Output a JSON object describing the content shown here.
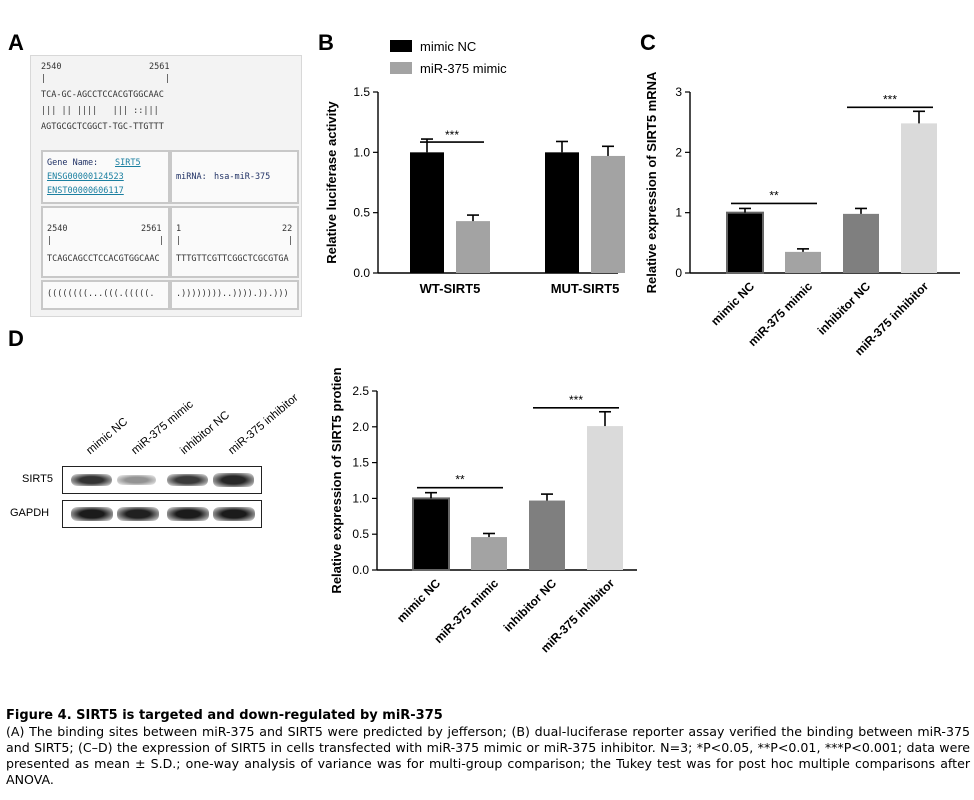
{
  "panel_labels": {
    "a": "A",
    "b": "B",
    "c": "C",
    "d": "D"
  },
  "panelA": {
    "pos1_start": "2540",
    "pos1_end": "2561",
    "seq1": "TCA-GC-AGCCTCCACGTGGCAAC",
    "match1": "||| || ||||   ||| ::|||",
    "seq2": "AGTGCGCTCGGCT-TGC-TTGTTT",
    "gene_name_label": "Gene Name:",
    "gene_name": "SIRT5",
    "ensg": "ENSG00000124523",
    "enst": "ENST00000606117",
    "mirna_label": "miRNA:",
    "mirna": "hsa-miR-375",
    "pos2_start": "2540",
    "pos2_end": "2561",
    "pos3_start": "1",
    "pos3_end": "22",
    "bar": "|",
    "seq3": "TCAGCAGCCTCCACGTGGCAAC",
    "seq4": "TTTGTTCGTTCGGCTCGCGTGA",
    "struct1": "((((((((...(((.(((((.",
    "struct2": ".))))))))..)))).)).)))"
  },
  "chart_data": [
    {
      "id": "B",
      "type": "bar",
      "categories": [
        "WT-SIRT5",
        "MUT-SIRT5"
      ],
      "series": [
        {
          "name": "mimic NC",
          "color": "#000000",
          "values": [
            1.0,
            1.0
          ],
          "errors": [
            0.11,
            0.09
          ]
        },
        {
          "name": "miR-375 mimic",
          "color": "#a3a3a3",
          "values": [
            0.43,
            0.97
          ],
          "errors": [
            0.05,
            0.08
          ]
        }
      ],
      "ylabel": "Relative luciferase activity",
      "ylim": [
        0,
        1.5
      ],
      "yticks": [
        "0.0",
        "0.5",
        "1.0",
        "1.5"
      ],
      "significance": [
        {
          "label": "***",
          "category": "WT-SIRT5"
        }
      ]
    },
    {
      "id": "C",
      "type": "bar",
      "categories": [
        "mimic NC",
        "miR-375 mimic",
        "inhibitor NC",
        "miR-375 inhibitor"
      ],
      "values": [
        1.0,
        0.35,
        0.98,
        2.48
      ],
      "errors": [
        0.07,
        0.05,
        0.09,
        0.2
      ],
      "colors": [
        "#000000",
        "#a3a3a3",
        "#7f7f7f",
        "#dadada"
      ],
      "ylabel": "Relative expression of SIRT5 mRNA",
      "ylim": [
        0,
        3
      ],
      "yticks": [
        "0",
        "1",
        "2",
        "3"
      ],
      "significance": [
        {
          "label": "**",
          "between": [
            0,
            1
          ]
        },
        {
          "label": "***",
          "between": [
            2,
            3
          ]
        }
      ]
    },
    {
      "id": "D",
      "type": "bar",
      "categories": [
        "mimic NC",
        "miR-375 mimic",
        "inhibitor NC",
        "miR-375 inhibitor"
      ],
      "values": [
        1.0,
        0.46,
        0.97,
        2.01
      ],
      "errors": [
        0.08,
        0.05,
        0.09,
        0.2
      ],
      "colors": [
        "#000000",
        "#a3a3a3",
        "#7f7f7f",
        "#dadada"
      ],
      "ylabel": "Relative expression of SIRT5 protien",
      "ylim": [
        0,
        2.5
      ],
      "yticks": [
        "0.0",
        "0.5",
        "1.0",
        "1.5",
        "2.0",
        "2.5"
      ],
      "significance": [
        {
          "label": "**",
          "between": [
            0,
            1
          ]
        },
        {
          "label": "***",
          "between": [
            2,
            3
          ]
        }
      ]
    }
  ],
  "blot": {
    "lanes": [
      "mimic NC",
      "miR-375 mimic",
      "inhibitor NC",
      "miR-375 inhibitor"
    ],
    "rows": [
      {
        "name": "SIRT5",
        "intensity": [
          0.85,
          0.45,
          0.82,
          0.9
        ]
      },
      {
        "name": "GAPDH",
        "intensity": [
          0.95,
          0.93,
          0.95,
          0.95
        ]
      }
    ]
  },
  "caption": {
    "title": "Figure 4. SIRT5 is targeted and down-regulated by miR-375",
    "body": "(A) The binding sites between miR-375 and SIRT5 were predicted by jefferson; (B) dual-luciferase reporter assay verified the binding between miR-375 and SIRT5; (C–D) the expression of SIRT5 in cells transfected with miR-375 mimic or miR-375 inhibitor. N=3; *P<0.05, **P<0.01, ***P<0.001; data were presented as mean ± S.D.; one-way analysis of variance was for multi-group comparison; the Tukey test was for post hoc multiple comparisons after ANOVA."
  }
}
